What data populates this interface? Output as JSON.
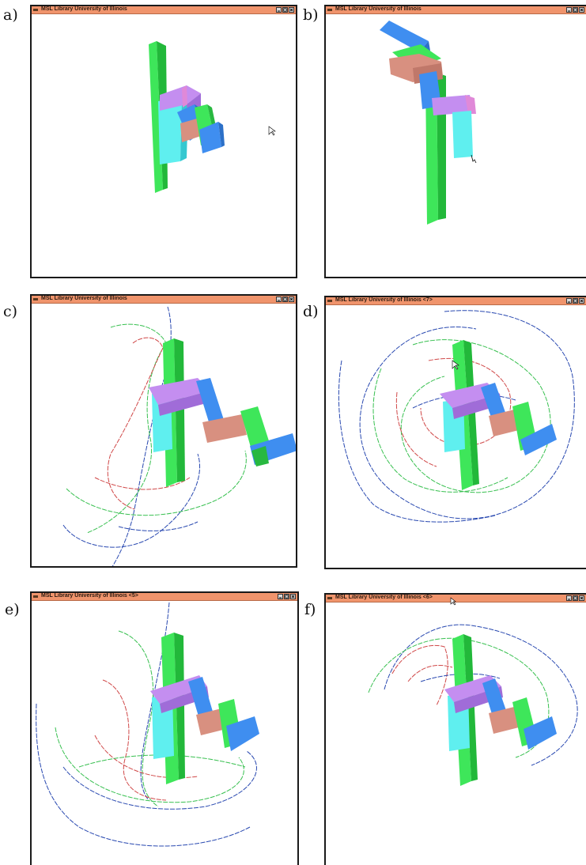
{
  "panels": [
    {
      "label": "a)",
      "title": "MSL Library   University of Illinois"
    },
    {
      "label": "b)",
      "title": "MSL Library   University of Illinois"
    },
    {
      "label": "c)",
      "title": "MSL Library   University of Illinois"
    },
    {
      "label": "d)",
      "title": "MSL Library   University of Illinois <7>"
    },
    {
      "label": "e)",
      "title": "MSL Library   University of Illinois <5>"
    },
    {
      "label": "f)",
      "title": "MSL Library   University of Illinois <6>"
    }
  ],
  "window_buttons": [
    "minimize-icon",
    "maximize-icon",
    "close-icon"
  ],
  "colors": {
    "titlebar": "#f0946c",
    "obstacle_green": "#3ee65a",
    "cyan": "#5fefef",
    "violet": "#c48ef0",
    "blue": "#3f8ef0",
    "salmon": "#d89080",
    "trace_blue": "#2848b0",
    "trace_green": "#38c050",
    "trace_red": "#d04848"
  }
}
